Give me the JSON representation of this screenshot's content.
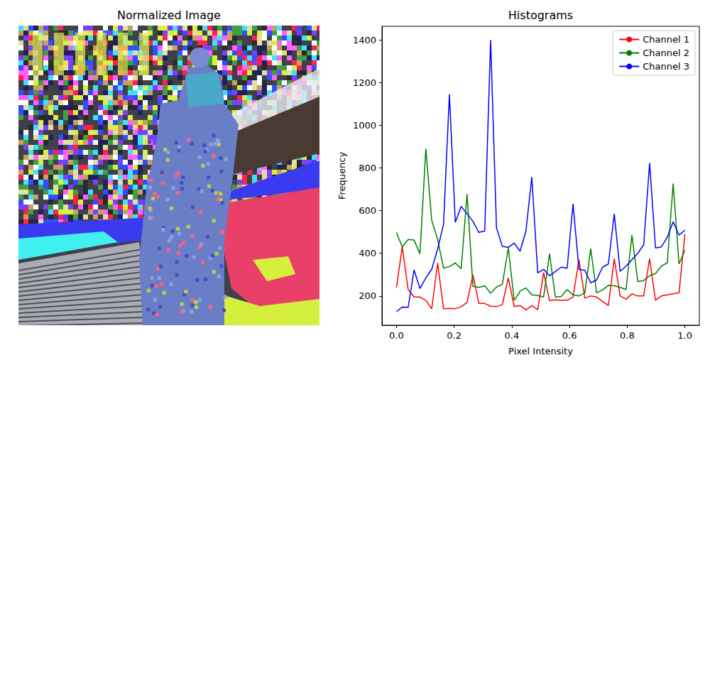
{
  "chart_data": [
    {
      "type": "image",
      "title": "Normalized Image"
    },
    {
      "type": "line",
      "title": "Histograms",
      "x_label": "Pixel Intensity",
      "y_label": "Frequency",
      "x": [
        0,
        0.0204,
        0.0408,
        0.0612,
        0.0816,
        0.102,
        0.1224,
        0.1429,
        0.1633,
        0.1837,
        0.2041,
        0.2245,
        0.2449,
        0.2653,
        0.2857,
        0.3061,
        0.3265,
        0.3469,
        0.3673,
        0.3878,
        0.4082,
        0.4286,
        0.449,
        0.4694,
        0.4898,
        0.5102,
        0.5306,
        0.551,
        0.5714,
        0.5918,
        0.6122,
        0.6327,
        0.6531,
        0.6735,
        0.6939,
        0.7143,
        0.7347,
        0.7551,
        0.7755,
        0.7959,
        0.8163,
        0.8367,
        0.8571,
        0.8776,
        0.898,
        0.9184,
        0.9388,
        0.9592,
        0.9796,
        1
      ],
      "series": [
        {
          "name": "Channel 1",
          "color": "#ff0000",
          "values": [
            240,
            430,
            230,
            195,
            195,
            180,
            140,
            355,
            140,
            142,
            140,
            150,
            170,
            300,
            165,
            165,
            152,
            150,
            160,
            285,
            150,
            155,
            135,
            155,
            135,
            310,
            178,
            182,
            180,
            180,
            195,
            370,
            190,
            200,
            195,
            175,
            155,
            375,
            200,
            185,
            210,
            200,
            200,
            375,
            180,
            200,
            205,
            210,
            215,
            490
          ]
        },
        {
          "name": "Channel 2",
          "color": "#008000",
          "values": [
            497,
            430,
            465,
            462,
            398,
            890,
            555,
            465,
            330,
            338,
            355,
            328,
            678,
            245,
            240,
            248,
            213,
            242,
            255,
            425,
            180,
            222,
            238,
            205,
            203,
            195,
            398,
            195,
            198,
            230,
            205,
            200,
            215,
            422,
            215,
            228,
            250,
            248,
            240,
            230,
            485,
            268,
            272,
            295,
            305,
            340,
            355,
            727,
            350,
            415
          ]
        },
        {
          "name": "Channel 3",
          "color": "#0000ff",
          "values": [
            127,
            148,
            147,
            322,
            235,
            285,
            325,
            420,
            535,
            1145,
            545,
            620,
            585,
            550,
            498,
            505,
            1400,
            520,
            432,
            428,
            448,
            410,
            505,
            757,
            308,
            325,
            295,
            315,
            335,
            330,
            632,
            325,
            320,
            262,
            275,
            335,
            350,
            585,
            315,
            340,
            370,
            400,
            440,
            823,
            425,
            430,
            475,
            548,
            485,
            508
          ]
        }
      ],
      "xlim": [
        -0.05,
        1.05
      ],
      "ylim": [
        63,
        1464
      ],
      "xticks": [
        {
          "value": 0,
          "label": "0.0"
        },
        0.2,
        0.4,
        0.6,
        0.8,
        {
          "value": 1,
          "label": "1.0"
        }
      ],
      "yticks": [
        200,
        400,
        600,
        800,
        1000,
        1200,
        1400
      ],
      "grid": false,
      "legend": "upper right"
    }
  ]
}
